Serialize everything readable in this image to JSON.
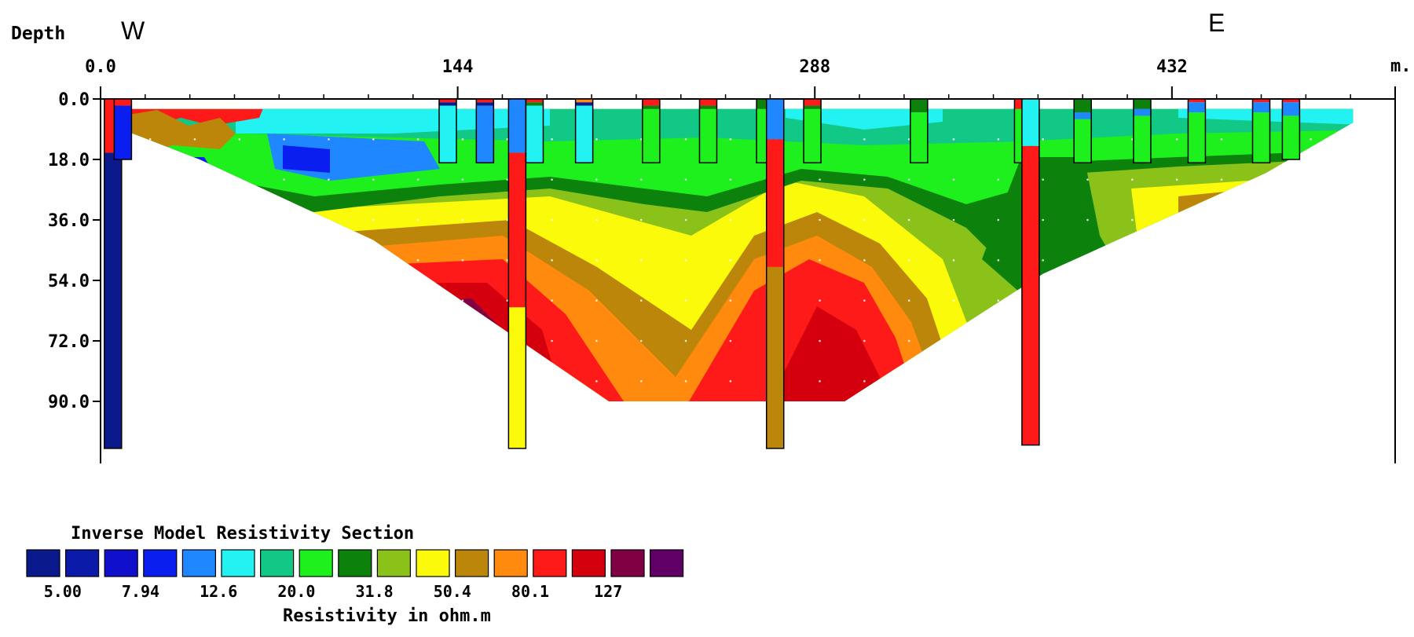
{
  "chart_data": {
    "type": "heatmap",
    "title": "Inverse Model Resistivity Section",
    "ylabel": "Depth",
    "x_unit": "m.",
    "direction_labels": {
      "west": "W",
      "east": "E"
    },
    "xlim": [
      0,
      522
    ],
    "ylim": [
      0,
      108
    ],
    "x_ticks": [
      "0.0",
      "144",
      "288",
      "432"
    ],
    "x_tick_values": [
      0,
      144,
      288,
      432
    ],
    "y_ticks": [
      "0.0",
      "18.0",
      "36.0",
      "54.0",
      "72.0",
      "90.0"
    ],
    "y_tick_values": [
      0,
      18,
      36,
      54,
      72,
      90
    ],
    "legend": {
      "title": "Inverse Model Resistivity Section",
      "xlabel": "Resistivity in ohm.m",
      "colors": [
        "#0a1a8c",
        "#0c1aaa",
        "#1010cc",
        "#0a1ef0",
        "#1f87ff",
        "#22f2f2",
        "#12c886",
        "#1ef01e",
        "#0c820c",
        "#8ac21a",
        "#fafa0a",
        "#bc860a",
        "#ff8a0e",
        "#ff1a1a",
        "#d4000e",
        "#800044",
        "#600066"
      ],
      "labels": [
        "5.00",
        "7.94",
        "12.6",
        "20.0",
        "31.8",
        "50.4",
        "80.1",
        "127"
      ]
    },
    "section_extent": {
      "top_depth": 3,
      "outline": [
        [
          6,
          3
        ],
        [
          505,
          3
        ],
        [
          505,
          7
        ],
        [
          470,
          22
        ],
        [
          380,
          52
        ],
        [
          300,
          90
        ],
        [
          205,
          90
        ],
        [
          110,
          42
        ],
        [
          40,
          18
        ],
        [
          12,
          10
        ]
      ]
    },
    "boreholes": [
      {
        "x": 5,
        "depth_bottom": 104,
        "layers": [
          {
            "from": 0,
            "to": 16,
            "color": "#ff1a1a"
          },
          {
            "from": 16,
            "to": 104,
            "color": "#0a1a8c"
          }
        ]
      },
      {
        "x": 9,
        "depth_bottom": 18,
        "layers": [
          {
            "from": 0,
            "to": 2,
            "color": "#ff1a1a"
          },
          {
            "from": 2,
            "to": 18,
            "color": "#0a1ef0"
          }
        ]
      },
      {
        "x": 140,
        "depth_bottom": 19,
        "layers": [
          {
            "from": 0,
            "to": 1,
            "color": "#ff1a1a"
          },
          {
            "from": 1,
            "to": 2,
            "color": "#0a1a8c"
          },
          {
            "from": 2,
            "to": 19,
            "color": "#22f2f2"
          }
        ]
      },
      {
        "x": 155,
        "depth_bottom": 19,
        "layers": [
          {
            "from": 0,
            "to": 1,
            "color": "#ff1a1a"
          },
          {
            "from": 1,
            "to": 2,
            "color": "#0a1a8c"
          },
          {
            "from": 2,
            "to": 19,
            "color": "#1f87ff"
          }
        ]
      },
      {
        "x": 168,
        "depth_bottom": 104,
        "layers": [
          {
            "from": 0,
            "to": 16,
            "color": "#1f87ff"
          },
          {
            "from": 16,
            "to": 62,
            "color": "#ff1a1a"
          },
          {
            "from": 62,
            "to": 104,
            "color": "#fafa0a"
          }
        ]
      },
      {
        "x": 175,
        "depth_bottom": 19,
        "layers": [
          {
            "from": 0,
            "to": 1,
            "color": "#ff1a1a"
          },
          {
            "from": 1,
            "to": 2,
            "color": "#0c820c"
          },
          {
            "from": 2,
            "to": 19,
            "color": "#22f2f2"
          }
        ]
      },
      {
        "x": 195,
        "depth_bottom": 19,
        "layers": [
          {
            "from": 0,
            "to": 1,
            "color": "#ff8a0e"
          },
          {
            "from": 1,
            "to": 2,
            "color": "#0a1a8c"
          },
          {
            "from": 2,
            "to": 19,
            "color": "#22f2f2"
          }
        ]
      },
      {
        "x": 222,
        "depth_bottom": 19,
        "layers": [
          {
            "from": 0,
            "to": 2,
            "color": "#ff1a1a"
          },
          {
            "from": 2,
            "to": 3,
            "color": "#0c820c"
          },
          {
            "from": 3,
            "to": 19,
            "color": "#1ef01e"
          }
        ]
      },
      {
        "x": 245,
        "depth_bottom": 19,
        "layers": [
          {
            "from": 0,
            "to": 2,
            "color": "#ff1a1a"
          },
          {
            "from": 2,
            "to": 3,
            "color": "#0c820c"
          },
          {
            "from": 3,
            "to": 19,
            "color": "#1ef01e"
          }
        ]
      },
      {
        "x": 268,
        "depth_bottom": 19,
        "layers": [
          {
            "from": 0,
            "to": 3,
            "color": "#0c820c"
          },
          {
            "from": 3,
            "to": 19,
            "color": "#1ef01e"
          }
        ]
      },
      {
        "x": 272,
        "depth_bottom": 104,
        "layers": [
          {
            "from": 0,
            "to": 12,
            "color": "#1f87ff"
          },
          {
            "from": 12,
            "to": 50,
            "color": "#ff1a1a"
          },
          {
            "from": 50,
            "to": 104,
            "color": "#bc860a"
          }
        ]
      },
      {
        "x": 287,
        "depth_bottom": 19,
        "layers": [
          {
            "from": 0,
            "to": 2,
            "color": "#ff1a1a"
          },
          {
            "from": 2,
            "to": 3,
            "color": "#0c820c"
          },
          {
            "from": 3,
            "to": 19,
            "color": "#1ef01e"
          }
        ]
      },
      {
        "x": 330,
        "depth_bottom": 19,
        "layers": [
          {
            "from": 0,
            "to": 4,
            "color": "#0c820c"
          },
          {
            "from": 4,
            "to": 19,
            "color": "#1ef01e"
          }
        ]
      },
      {
        "x": 372,
        "depth_bottom": 19,
        "layers": [
          {
            "from": 0,
            "to": 3,
            "color": "#ff1a1a"
          },
          {
            "from": 3,
            "to": 19,
            "color": "#1ef01e"
          }
        ]
      },
      {
        "x": 375,
        "depth_bottom": 103,
        "layers": [
          {
            "from": 0,
            "to": 14,
            "color": "#22f2f2"
          },
          {
            "from": 14,
            "to": 103,
            "color": "#ff1a1a"
          }
        ]
      },
      {
        "x": 396,
        "depth_bottom": 19,
        "layers": [
          {
            "from": 0,
            "to": 4,
            "color": "#0c820c"
          },
          {
            "from": 4,
            "to": 6,
            "color": "#1f87ff"
          },
          {
            "from": 6,
            "to": 19,
            "color": "#1ef01e"
          }
        ]
      },
      {
        "x": 420,
        "depth_bottom": 19,
        "layers": [
          {
            "from": 0,
            "to": 3,
            "color": "#0c820c"
          },
          {
            "from": 3,
            "to": 5,
            "color": "#1f87ff"
          },
          {
            "from": 5,
            "to": 19,
            "color": "#1ef01e"
          }
        ]
      },
      {
        "x": 442,
        "depth_bottom": 19,
        "layers": [
          {
            "from": 0,
            "to": 1,
            "color": "#ff1a1a"
          },
          {
            "from": 1,
            "to": 4,
            "color": "#1f87ff"
          },
          {
            "from": 4,
            "to": 19,
            "color": "#1ef01e"
          }
        ]
      },
      {
        "x": 468,
        "depth_bottom": 19,
        "layers": [
          {
            "from": 0,
            "to": 1,
            "color": "#ff1a1a"
          },
          {
            "from": 1,
            "to": 4,
            "color": "#1f87ff"
          },
          {
            "from": 4,
            "to": 19,
            "color": "#1ef01e"
          }
        ]
      },
      {
        "x": 480,
        "depth_bottom": 18,
        "layers": [
          {
            "from": 0,
            "to": 1,
            "color": "#ff1a1a"
          },
          {
            "from": 1,
            "to": 5,
            "color": "#1f87ff"
          },
          {
            "from": 5,
            "to": 18,
            "color": "#1ef01e"
          }
        ]
      }
    ]
  }
}
